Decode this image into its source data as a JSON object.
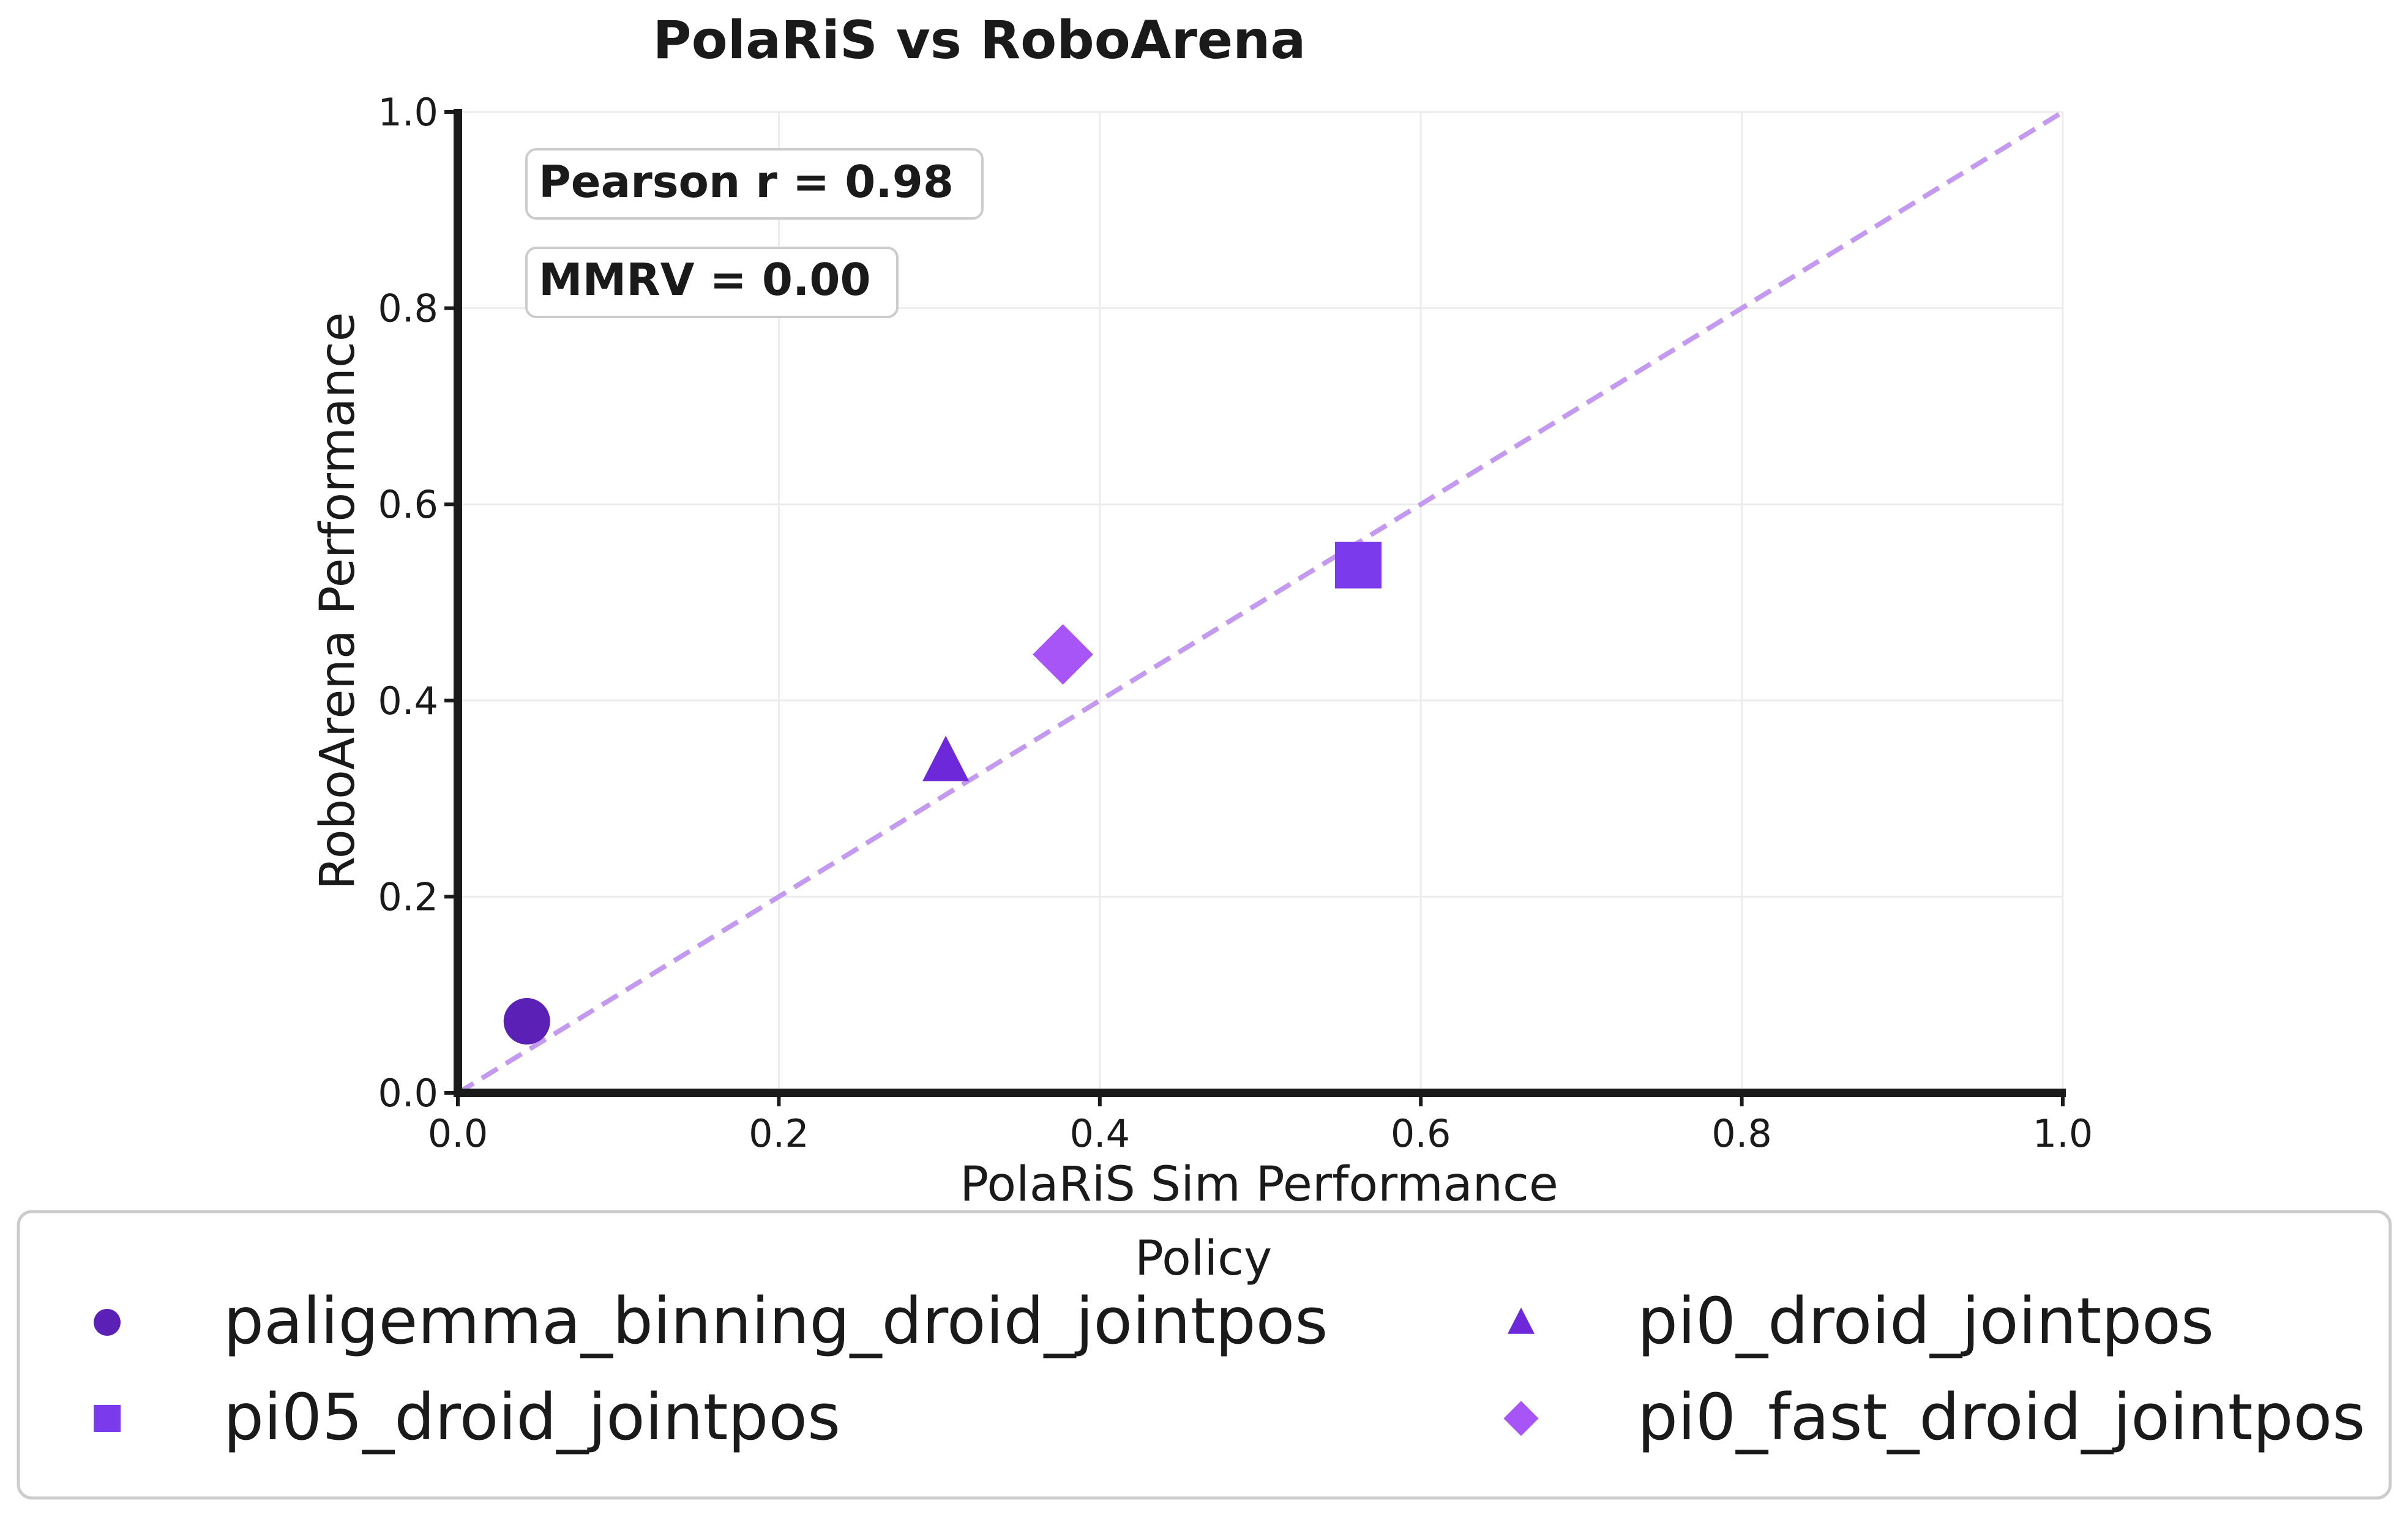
{
  "chart_data": {
    "type": "scatter",
    "title": "PolaRiS vs RoboArena",
    "xlabel": "PolaRiS Sim Performance",
    "ylabel": "RoboArena Performance",
    "xlim": [
      0.0,
      1.0
    ],
    "ylim": [
      0.0,
      1.0
    ],
    "x_ticks": [
      "0.0",
      "0.2",
      "0.4",
      "0.6",
      "0.8",
      "1.0"
    ],
    "y_ticks": [
      "0.0",
      "0.2",
      "0.4",
      "0.6",
      "0.8",
      "1.0"
    ],
    "grid": true,
    "legend_title": "Policy",
    "legend_position": "bottom",
    "series": [
      {
        "name": "paligemma_binning_droid_jointpos",
        "marker": "circle",
        "color": "#5b21b6",
        "x": 0.043,
        "y": 0.073
      },
      {
        "name": "pi0_droid_jointpos",
        "marker": "triangle",
        "color": "#6d28d9",
        "x": 0.304,
        "y": 0.338
      },
      {
        "name": "pi05_droid_jointpos",
        "marker": "square",
        "color": "#7c3aed",
        "x": 0.561,
        "y": 0.538
      },
      {
        "name": "pi0_fast_droid_jointpos",
        "marker": "diamond",
        "color": "#a855f7",
        "x": 0.377,
        "y": 0.447
      }
    ],
    "reference_line": {
      "style": "dashed",
      "color": "#c49af0",
      "from": [
        0,
        0
      ],
      "to": [
        1,
        1
      ]
    },
    "annotations": [
      "Pearson r = 0.98",
      "MMRV = 0.00"
    ]
  }
}
